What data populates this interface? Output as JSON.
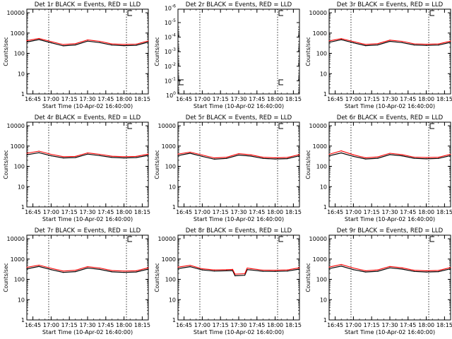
{
  "title_suffix": "BLACK = Events, RED = LLD",
  "time_ticks": [
    "16:45",
    "17:00",
    "17:15",
    "17:30",
    "17:45",
    "18:00",
    "18:15"
  ],
  "xlabel": "Start Time (10-Apr-02 16:40:00)",
  "ylabel": "Counts/sec",
  "colors": {
    "events": "#000000",
    "lld": "#ff0000"
  },
  "chart_data": [
    {
      "type": "line",
      "panel": "Det 1r",
      "title": "Det 1r BLACK = Events, RED = LLD",
      "xlabel": "Start Time (10-Apr-02 16:40:00)",
      "ylabel": "Counts/sec",
      "xlim": [
        "16:40",
        "18:20"
      ],
      "ylim": [
        1,
        15000
      ],
      "yscale": "log",
      "yticks": [
        "1",
        "10",
        "100",
        "1000",
        "10000"
      ],
      "marker_times": [
        "16:58",
        "18:02"
      ],
      "x": [
        "16:40",
        "16:50",
        "17:00",
        "17:10",
        "17:20",
        "17:30",
        "17:40",
        "17:50",
        "18:00",
        "18:10",
        "18:20"
      ],
      "series": [
        {
          "name": "Events",
          "values": [
            360,
            480,
            330,
            235,
            260,
            400,
            340,
            255,
            240,
            250,
            360
          ]
        },
        {
          "name": "LLD",
          "values": [
            420,
            540,
            380,
            270,
            300,
            460,
            390,
            290,
            275,
            285,
            410
          ]
        }
      ]
    },
    {
      "type": "line",
      "panel": "Det 2r",
      "title": "Det 2r BLACK = Events, RED = LLD",
      "xlabel": "Start Time (10-Apr-02 16:40:00)",
      "ylabel": "Counts/sec",
      "xlim": [
        "16:40",
        "18:20"
      ],
      "ylim": [
        0.8,
        1.2e-06
      ],
      "yscale": "log",
      "yticks": [
        "10^0",
        "10^-1",
        "10^-2",
        "10^-3",
        "10^-4",
        "10^-5",
        "10^-6"
      ],
      "marker_times": [
        "16:58",
        "18:02"
      ],
      "x": [],
      "series": []
    },
    {
      "type": "line",
      "panel": "Det 3r",
      "title": "Det 3r BLACK = Events, RED = LLD",
      "xlabel": "Start Time (10-Apr-02 16:40:00)",
      "ylabel": "Counts/sec",
      "xlim": [
        "16:40",
        "18:20"
      ],
      "ylim": [
        1,
        15000
      ],
      "yscale": "log",
      "yticks": [
        "1",
        "10",
        "100",
        "1000",
        "10000"
      ],
      "marker_times": [
        "16:58",
        "18:02"
      ],
      "x": [
        "16:40",
        "16:50",
        "17:00",
        "17:10",
        "17:20",
        "17:30",
        "17:40",
        "17:50",
        "18:00",
        "18:10",
        "18:20"
      ],
      "series": [
        {
          "name": "Events",
          "values": [
            350,
            470,
            330,
            240,
            260,
            390,
            340,
            260,
            245,
            255,
            350
          ]
        },
        {
          "name": "LLD",
          "values": [
            410,
            530,
            380,
            275,
            300,
            450,
            390,
            295,
            280,
            290,
            400
          ]
        }
      ]
    },
    {
      "type": "line",
      "panel": "Det 4r",
      "title": "Det 4r BLACK = Events, RED = LLD",
      "xlabel": "Start Time (10-Apr-02 16:40:00)",
      "ylabel": "Counts/sec",
      "xlim": [
        "16:40",
        "18:20"
      ],
      "ylim": [
        1,
        15000
      ],
      "yscale": "log",
      "yticks": [
        "1",
        "10",
        "100",
        "1000",
        "10000"
      ],
      "marker_times": [
        "16:58",
        "18:02"
      ],
      "x": [
        "16:40",
        "16:50",
        "17:00",
        "17:10",
        "17:20",
        "17:30",
        "17:40",
        "17:50",
        "18:00",
        "18:10",
        "18:20"
      ],
      "series": [
        {
          "name": "Events",
          "values": [
            370,
            470,
            330,
            260,
            270,
            400,
            340,
            275,
            260,
            270,
            350
          ]
        },
        {
          "name": "LLD",
          "values": [
            440,
            560,
            390,
            300,
            310,
            460,
            390,
            315,
            300,
            310,
            400
          ]
        }
      ]
    },
    {
      "type": "line",
      "panel": "Det 5r",
      "title": "Det 5r BLACK = Events, RED = LLD",
      "xlabel": "Start Time (10-Apr-02 16:40:00)",
      "ylabel": "Counts/sec",
      "xlim": [
        "16:40",
        "18:20"
      ],
      "ylim": [
        1,
        15000
      ],
      "yscale": "log",
      "yticks": [
        "1",
        "10",
        "100",
        "1000",
        "10000"
      ],
      "marker_times": [
        "16:58",
        "18:02"
      ],
      "x": [
        "16:40",
        "16:50",
        "17:00",
        "17:10",
        "17:20",
        "17:30",
        "17:40",
        "17:50",
        "18:00",
        "18:10",
        "18:20"
      ],
      "series": [
        {
          "name": "Events",
          "values": [
            340,
            440,
            310,
            225,
            245,
            360,
            320,
            245,
            230,
            240,
            330
          ]
        },
        {
          "name": "LLD",
          "values": [
            400,
            500,
            360,
            260,
            280,
            420,
            370,
            280,
            265,
            275,
            380
          ]
        }
      ]
    },
    {
      "type": "line",
      "panel": "Det 6r",
      "title": "Det 6r BLACK = Events, RED = LLD",
      "xlabel": "Start Time (10-Apr-02 16:40:00)",
      "ylabel": "Counts/sec",
      "xlim": [
        "16:40",
        "18:20"
      ],
      "ylim": [
        1,
        15000
      ],
      "yscale": "log",
      "yticks": [
        "1",
        "10",
        "100",
        "1000",
        "10000"
      ],
      "marker_times": [
        "16:58",
        "18:02"
      ],
      "x": [
        "16:40",
        "16:50",
        "17:00",
        "17:10",
        "17:20",
        "17:30",
        "17:40",
        "17:50",
        "18:00",
        "18:10",
        "18:20"
      ],
      "series": [
        {
          "name": "Events",
          "values": [
            330,
            460,
            310,
            230,
            250,
            380,
            330,
            250,
            235,
            245,
            340
          ]
        },
        {
          "name": "LLD",
          "values": [
            390,
            580,
            370,
            265,
            290,
            440,
            380,
            285,
            270,
            280,
            390
          ]
        }
      ]
    },
    {
      "type": "line",
      "panel": "Det 7r",
      "title": "Det 7r BLACK = Events, RED = LLD",
      "xlabel": "Start Time (10-Apr-02 16:40:00)",
      "ylabel": "Counts/sec",
      "xlim": [
        "16:40",
        "18:20"
      ],
      "ylim": [
        1,
        15000
      ],
      "yscale": "log",
      "yticks": [
        "1",
        "10",
        "100",
        "1000",
        "10000"
      ],
      "marker_times": [
        "16:58",
        "18:02"
      ],
      "x": [
        "16:40",
        "16:50",
        "17:00",
        "17:10",
        "17:20",
        "17:30",
        "17:40",
        "17:50",
        "18:00",
        "18:10",
        "18:20"
      ],
      "series": [
        {
          "name": "Events",
          "values": [
            330,
            430,
            300,
            220,
            240,
            360,
            310,
            235,
            220,
            230,
            320
          ]
        },
        {
          "name": "LLD",
          "values": [
            390,
            500,
            350,
            255,
            280,
            420,
            360,
            270,
            255,
            265,
            370
          ]
        }
      ]
    },
    {
      "type": "line",
      "panel": "Det 8r",
      "title": "Det 8r BLACK = Events, RED = LLD",
      "xlabel": "Start Time (10-Apr-02 16:40:00)",
      "ylabel": "Counts/sec",
      "xlim": [
        "16:40",
        "18:20"
      ],
      "ylim": [
        1,
        15000
      ],
      "yscale": "log",
      "yticks": [
        "1",
        "10",
        "100",
        "1000",
        "10000"
      ],
      "marker_times": [
        "16:58",
        "18:02"
      ],
      "x": [
        "16:40",
        "16:50",
        "17:00",
        "17:10",
        "17:20",
        "17:25",
        "17:27",
        "17:35",
        "17:37",
        "17:40",
        "17:50",
        "18:00",
        "18:10",
        "18:20"
      ],
      "series": [
        {
          "name": "Events",
          "values": [
            340,
            420,
            290,
            255,
            265,
            270,
            150,
            160,
            300,
            290,
            250,
            245,
            255,
            320
          ]
        },
        {
          "name": "LLD",
          "values": [
            400,
            490,
            330,
            290,
            300,
            310,
            180,
            190,
            360,
            340,
            285,
            280,
            290,
            370
          ]
        }
      ]
    },
    {
      "type": "line",
      "panel": "Det 9r",
      "title": "Det 9r BLACK = Events, RED = LLD",
      "xlabel": "Start Time (10-Apr-02 16:40:00)",
      "ylabel": "Counts/sec",
      "xlim": [
        "16:40",
        "18:20"
      ],
      "ylim": [
        1,
        15000
      ],
      "yscale": "log",
      "yticks": [
        "1",
        "10",
        "100",
        "1000",
        "10000"
      ],
      "marker_times": [
        "16:58",
        "18:02"
      ],
      "x": [
        "16:40",
        "16:50",
        "17:00",
        "17:10",
        "17:20",
        "17:30",
        "17:40",
        "17:50",
        "18:00",
        "18:10",
        "18:20"
      ],
      "series": [
        {
          "name": "Events",
          "values": [
            340,
            450,
            300,
            230,
            250,
            370,
            320,
            245,
            230,
            240,
            330
          ]
        },
        {
          "name": "LLD",
          "values": [
            400,
            540,
            360,
            265,
            290,
            430,
            370,
            280,
            265,
            275,
            380
          ]
        }
      ]
    }
  ]
}
